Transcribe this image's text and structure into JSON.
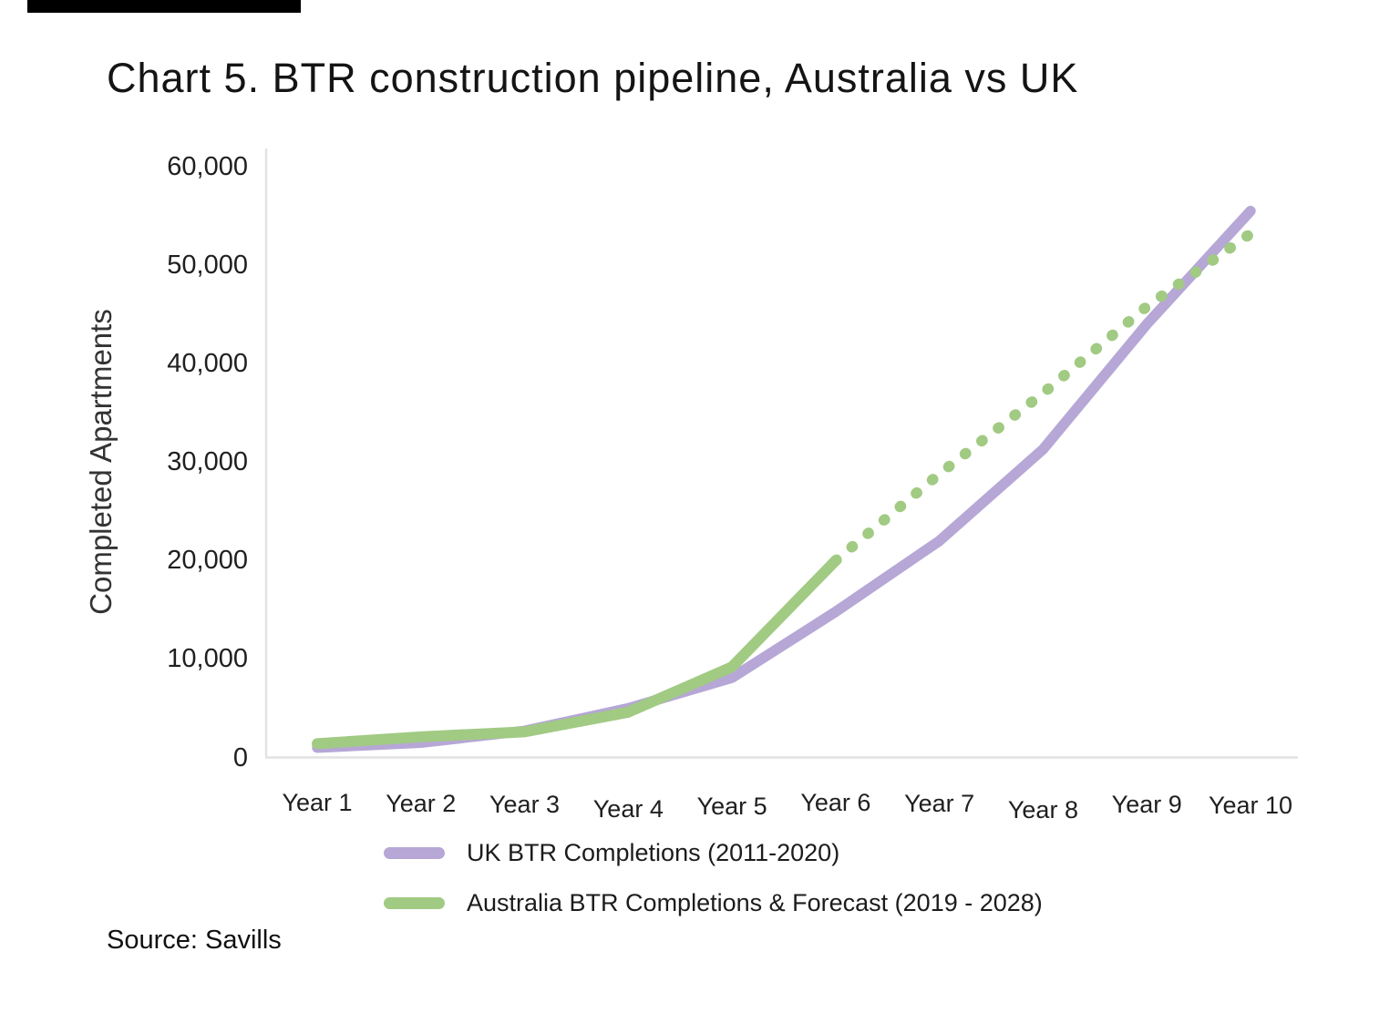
{
  "page": {
    "title": "Chart 5. BTR construction pipeline, Australia vs UK",
    "source": "Source: Savills"
  },
  "colors": {
    "uk_purple": "#b6a7d6",
    "australia_green": "#a1ca83",
    "axis_gray": "#e2e2e2",
    "top_bar_black": "#000000"
  },
  "chart_data": {
    "type": "line",
    "title": "Chart 5. BTR construction pipeline, Australia vs UK",
    "xlabel": "",
    "ylabel": "Completed Apartments",
    "categories": [
      "Year 1",
      "Year 2",
      "Year 3",
      "Year 4",
      "Year 5",
      "Year 6",
      "Year 7",
      "Year 8",
      "Year 9",
      "Year 10"
    ],
    "series": [
      {
        "name": "UK BTR Completions (2011-2020)",
        "color": "#b6a7d6",
        "style": "solid",
        "values": [
          1000,
          1500,
          2700,
          5000,
          8100,
          14800,
          22000,
          31300,
          44000,
          55500
        ]
      },
      {
        "name": "Australia BTR Completions & Forecast (2019 - 2028)",
        "color": "#a1ca83",
        "style": "solid-then-dashed",
        "dashed_from_category": "Year 6",
        "dashed_from_index": 5,
        "values": [
          1400,
          2100,
          2600,
          4600,
          9200,
          20000,
          28800,
          37000,
          45800,
          53200
        ]
      }
    ],
    "ylim": [
      0,
      60000
    ],
    "yticks": {
      "values": [
        0,
        10000,
        20000,
        30000,
        40000,
        50000,
        60000
      ],
      "labels": [
        "0",
        "10,000",
        "20,000",
        "30,000",
        "40,000",
        "50,000",
        "60,000"
      ]
    },
    "grid": false,
    "legend_position": "bottom"
  }
}
